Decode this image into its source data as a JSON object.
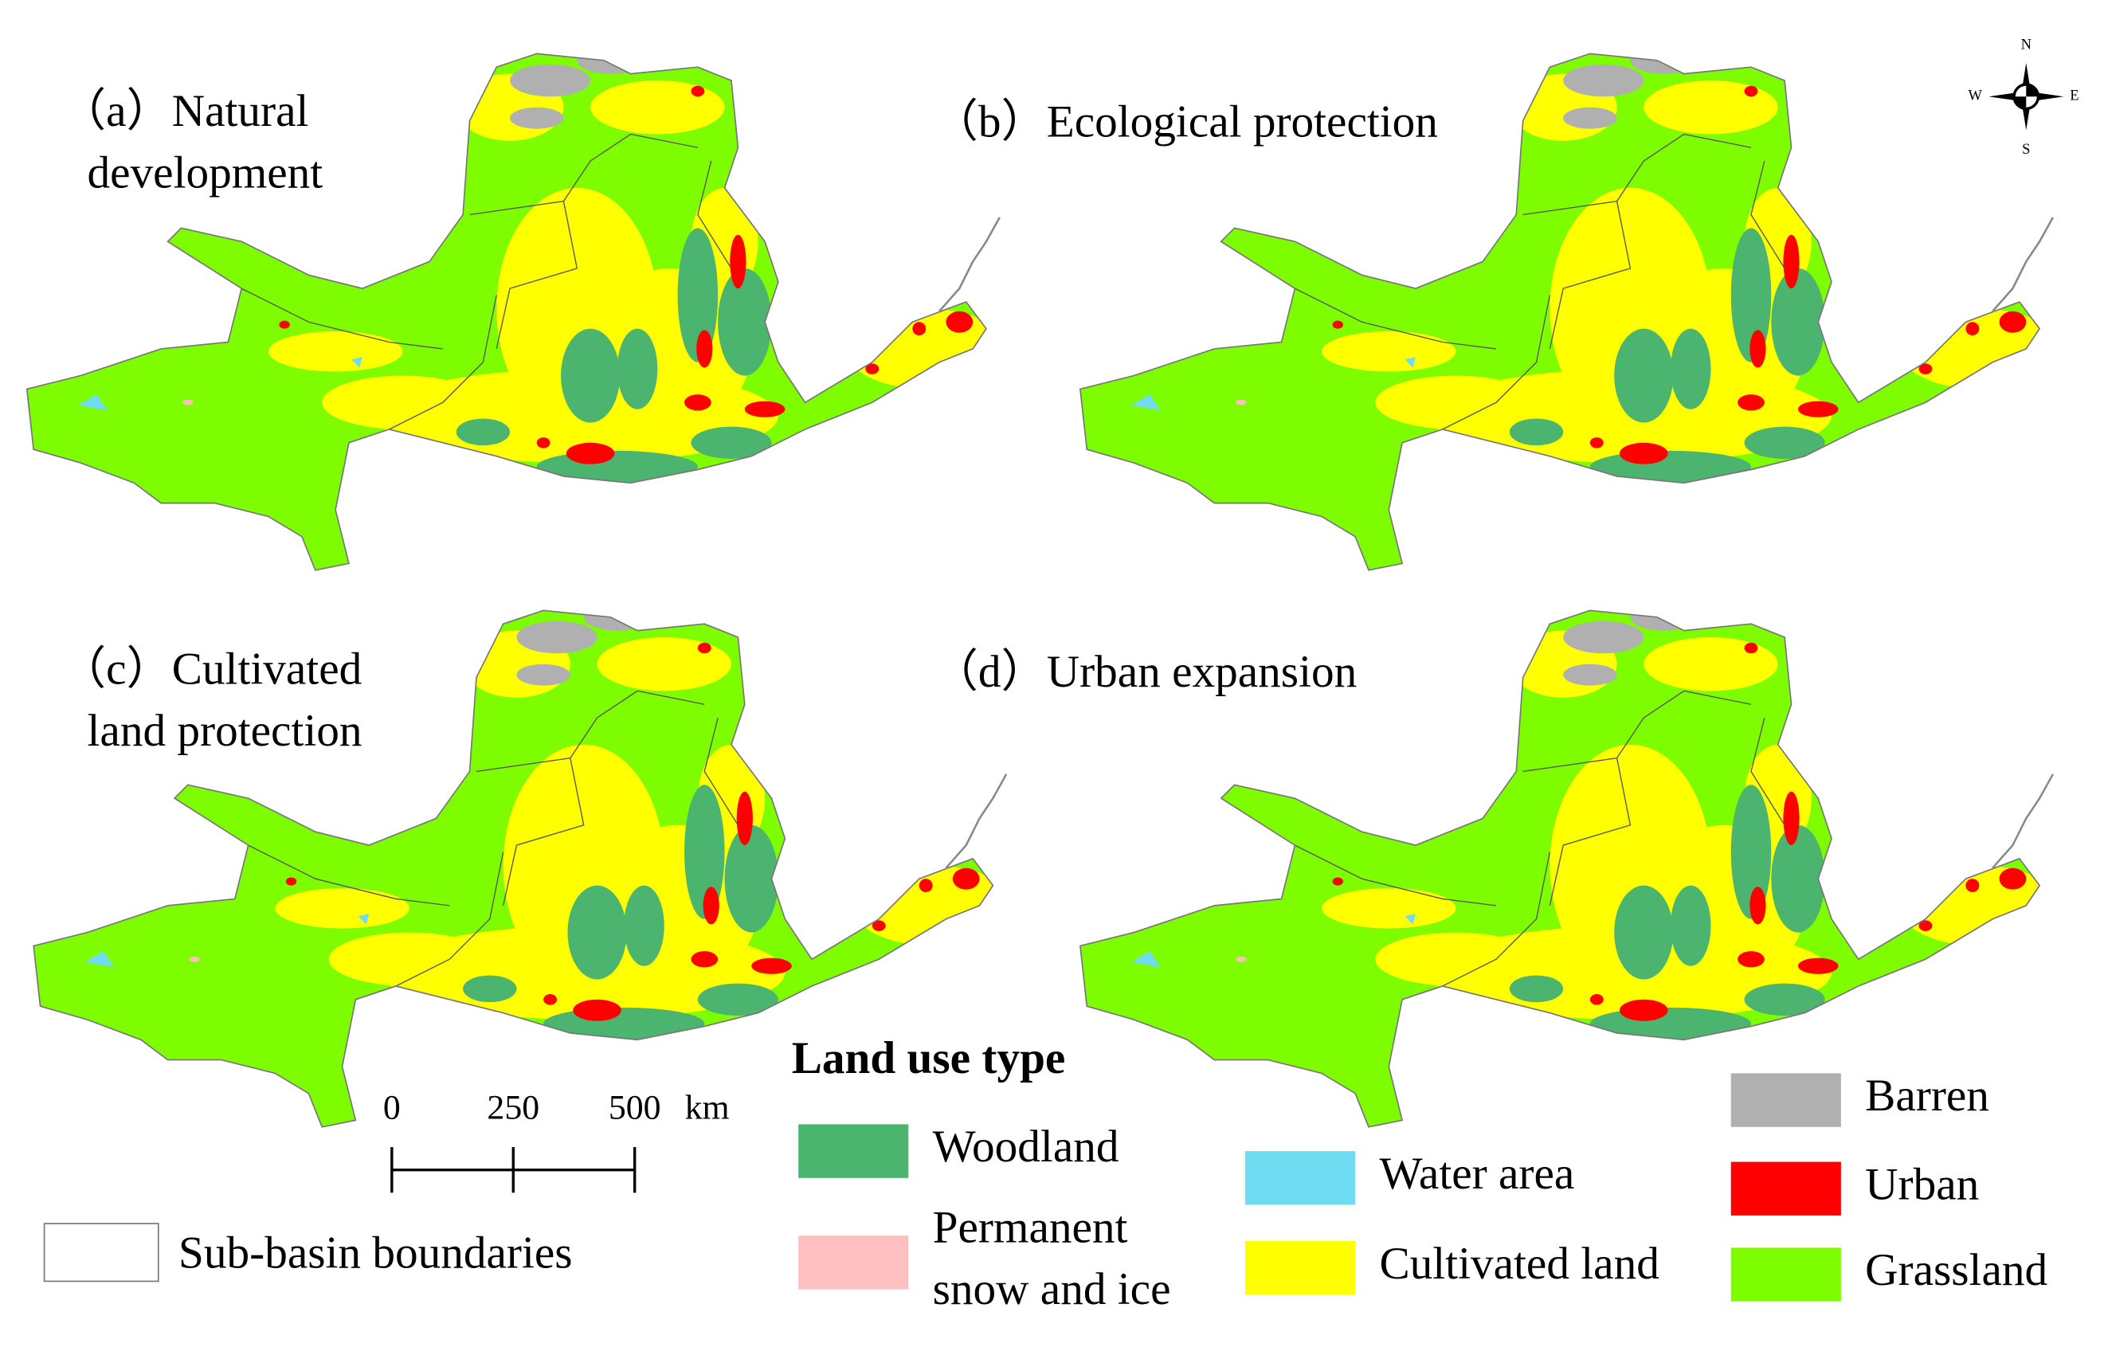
{
  "panels": [
    {
      "title": [
        "（a）Natural",
        "development"
      ]
    },
    {
      "title": [
        "（b）Ecological protection"
      ]
    },
    {
      "title": [
        "（c）Cultivated",
        "land protection"
      ]
    },
    {
      "title": [
        "（d）Urban expansion"
      ]
    }
  ],
  "compass": {
    "north": "N",
    "south": "S",
    "east": "E",
    "west": "W"
  },
  "scale_bar": {
    "ticks": [
      0,
      250,
      500
    ],
    "unit": "km"
  },
  "boundary_legend": "Sub-basin boundaries",
  "legend": {
    "title": "Land use type",
    "items": [
      {
        "label": [
          "Woodland"
        ],
        "color": "#4bb46e"
      },
      {
        "label": [
          "Permanent",
          "snow and ice"
        ],
        "color": "#ffbfc0"
      },
      {
        "label": [
          "Water area"
        ],
        "color": "#70dcf2"
      },
      {
        "label": [
          "Cultivated land"
        ],
        "color": "#ffff00"
      },
      {
        "label": [
          "Barren"
        ],
        "color": "#b0b0b0"
      },
      {
        "label": [
          "Urban"
        ],
        "color": "#ff0000"
      },
      {
        "label": [
          "Grassland"
        ],
        "color": "#7efc00"
      }
    ]
  }
}
